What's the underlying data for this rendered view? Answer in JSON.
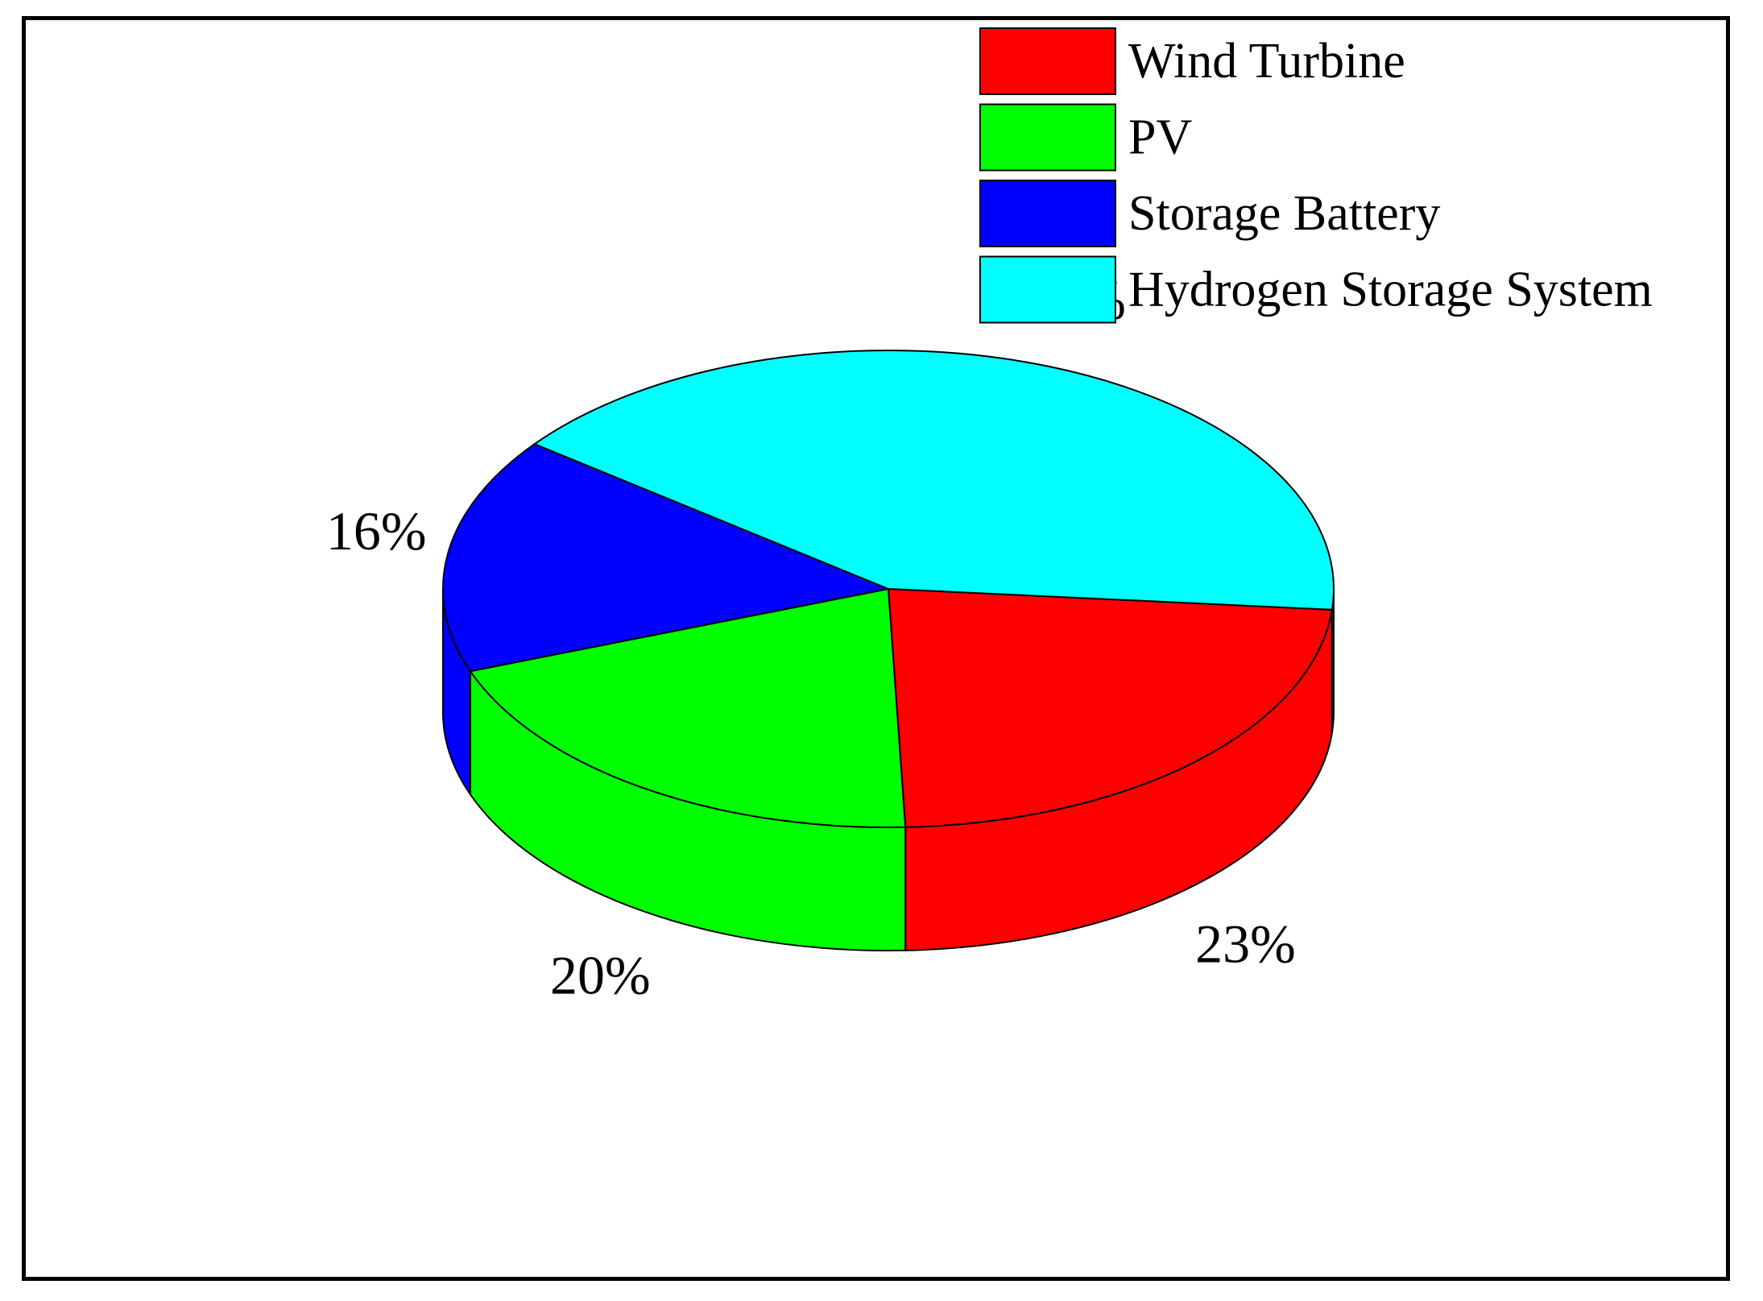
{
  "chart_data": {
    "type": "pie",
    "style": "3d",
    "title": "",
    "categories": [
      "Wind Turbine",
      "PV",
      "Storage Battery",
      "Hydrogen Storage System"
    ],
    "values": [
      23,
      20,
      16,
      41
    ],
    "labels": [
      "23%",
      "20%",
      "16%",
      "41%"
    ],
    "colors": [
      "#ff0000",
      "#00ff00",
      "#0000ff",
      "#00ffff"
    ],
    "legend_position": "top-right"
  }
}
